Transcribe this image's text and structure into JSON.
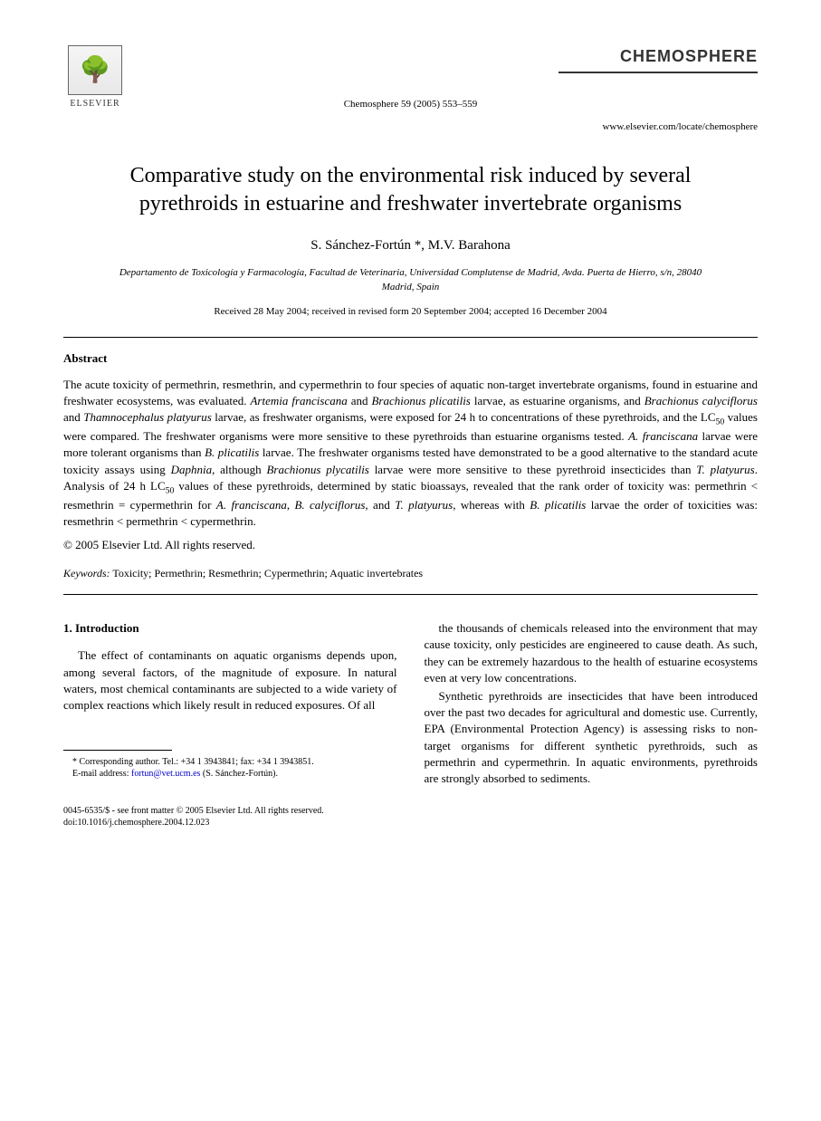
{
  "publisher": {
    "name": "ELSEVIER",
    "tree_glyph": "🌳"
  },
  "journal": {
    "name": "CHEMOSPHERE",
    "citation": "Chemosphere 59 (2005) 553–559",
    "website": "www.elsevier.com/locate/chemosphere"
  },
  "paper": {
    "title": "Comparative study on the environmental risk induced by several pyrethroids in estuarine and freshwater invertebrate organisms",
    "authors": "S. Sánchez-Fortún *, M.V. Barahona",
    "affiliation": "Departamento de Toxicología y Farmacología, Facultad de Veterinaria, Universidad Complutense de Madrid, Avda. Puerta de Hierro, s/n, 28040 Madrid, Spain",
    "dates": "Received 28 May 2004; received in revised form 20 September 2004; accepted 16 December 2004"
  },
  "abstract": {
    "heading": "Abstract",
    "text": "The acute toxicity of permethrin, resmethrin, and cypermethrin to four species of aquatic non-target invertebrate organisms, found in estuarine and freshwater ecosystems, was evaluated. Artemia franciscana and Brachionus plicatilis larvae, as estuarine organisms, and Brachionus calyciflorus and Thamnocephalus platyurus larvae, as freshwater organisms, were exposed for 24 h to concentrations of these pyrethroids, and the LC₅₀ values were compared. The freshwater organisms were more sensitive to these pyrethroids than estuarine organisms tested. A. franciscana larvae were more tolerant organisms than B. plicatilis larvae. The freshwater organisms tested have demonstrated to be a good alternative to the standard acute toxicity assays using Daphnia, although Brachionus plycatilis larvae were more sensitive to these pyrethroid insecticides than T. platyurus. Analysis of 24 h LC₅₀ values of these pyrethroids, determined by static bioassays, revealed that the rank order of toxicity was: permethrin < resmethrin = cypermethrin for A. franciscana, B. calyciflorus, and T. platyurus, whereas with B. plicatilis larvae the order of toxicities was: resmethrin < permethrin < cypermethrin.",
    "copyright": "© 2005 Elsevier Ltd. All rights reserved."
  },
  "keywords": {
    "label": "Keywords:",
    "text": "Toxicity; Permethrin; Resmethrin; Cypermethrin; Aquatic invertebrates"
  },
  "body": {
    "section1_heading": "1. Introduction",
    "col1_para1": "The effect of contaminants on aquatic organisms depends upon, among several factors, of the magnitude of exposure. In natural waters, most chemical contaminants are subjected to a wide variety of complex reactions which likely result in reduced exposures. Of all",
    "col2_para1": "the thousands of chemicals released into the environment that may cause toxicity, only pesticides are engineered to cause death. As such, they can be extremely hazardous to the health of estuarine ecosystems even at very low concentrations.",
    "col2_para2": "Synthetic pyrethroids are insecticides that have been introduced over the past two decades for agricultural and domestic use. Currently, EPA (Environmental Protection Agency) is assessing risks to non-target organisms for different synthetic pyrethroids, such as permethrin and cypermethrin. In aquatic environments, pyrethroids are strongly absorbed to sediments."
  },
  "footnote": {
    "corresponding": "* Corresponding author. Tel.: +34 1 3943841; fax: +34 1 3943851.",
    "email_label": "E-mail address:",
    "email": "fortun@vet.ucm.es",
    "email_person": "(S. Sánchez-Fortún)."
  },
  "footer": {
    "issn_line": "0045-6535/$ - see front matter © 2005 Elsevier Ltd. All rights reserved.",
    "doi": "doi:10.1016/j.chemosphere.2004.12.023"
  },
  "colors": {
    "text": "#000000",
    "background": "#ffffff",
    "link": "#0000cc",
    "divider": "#000000"
  },
  "typography": {
    "title_size_pt": 24,
    "body_size_pt": 13,
    "footnote_size_pt": 10,
    "font_family": "Georgia, Times New Roman, serif"
  }
}
